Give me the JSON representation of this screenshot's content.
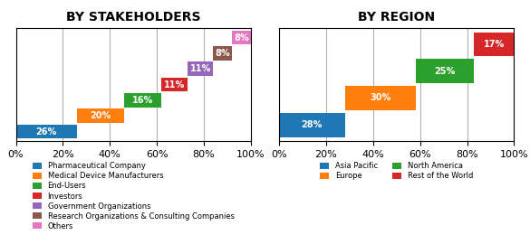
{
  "chart_data": [
    {
      "type": "waterfall",
      "orientation": "horizontal",
      "title": "BY STAKEHOLDERS",
      "categories": [
        "Pharmaceutical Company",
        "Medical Device Manufacturers",
        "End-Users",
        "Investors",
        "Government Organizations",
        "Research Organizations & Consulting Companies",
        "Others"
      ],
      "values": [
        26,
        20,
        16,
        11,
        11,
        8,
        8
      ],
      "value_labels": [
        "26%",
        "20%",
        "16%",
        "11%",
        "11%",
        "8%",
        "8%"
      ],
      "data_labels": true,
      "xlim": [
        0,
        100
      ],
      "xticks": [
        {
          "value": 0,
          "label": "0%"
        },
        {
          "value": 20,
          "label": "20%"
        },
        {
          "value": 40,
          "label": "40%"
        },
        {
          "value": 60,
          "label": "60%"
        },
        {
          "value": 80,
          "label": "80%"
        },
        {
          "value": 100,
          "label": "100%"
        }
      ],
      "grid": true,
      "legend": "below",
      "tick_labels": "x"
    },
    {
      "type": "waterfall",
      "orientation": "horizontal",
      "title": "BY REGION",
      "categories": [
        "Asia Pacific",
        "Europe",
        "North America",
        "Rest of the World"
      ],
      "values": [
        28,
        30,
        25,
        17
      ],
      "value_labels": [
        "28%",
        "30%",
        "25%",
        "17%"
      ],
      "data_labels": true,
      "xlim": [
        0,
        100
      ],
      "xticks": [
        {
          "value": 0,
          "label": "0%"
        },
        {
          "value": 20,
          "label": "20%"
        },
        {
          "value": 40,
          "label": "40%"
        },
        {
          "value": 60,
          "label": "60%"
        },
        {
          "value": 80,
          "label": "80%"
        },
        {
          "value": 100,
          "label": "100%"
        }
      ],
      "grid": true,
      "legend": "below",
      "tick_labels": "x"
    }
  ]
}
